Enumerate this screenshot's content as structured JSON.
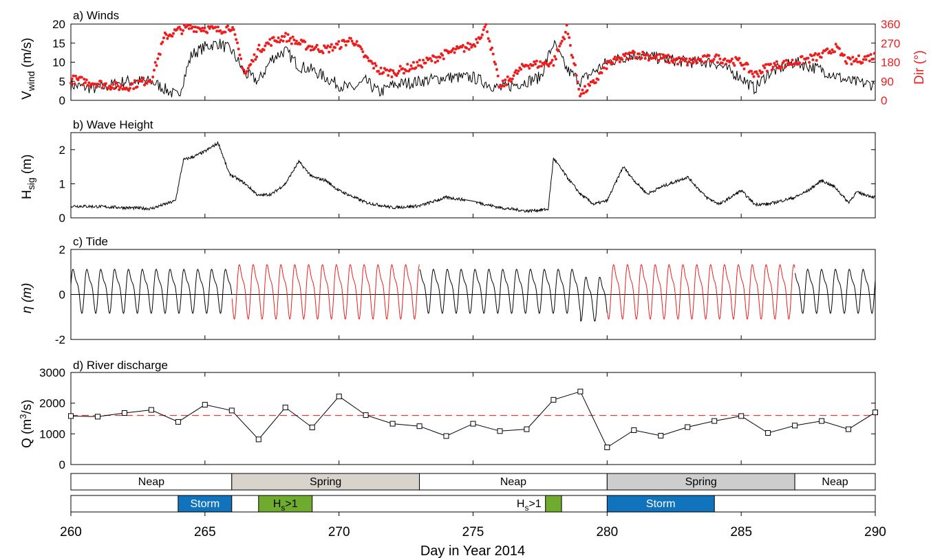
{
  "colors": {
    "axis": "#000000",
    "red": "#ee1c1c",
    "red_dash": "#e8393a",
    "spring1": "#d8d3cb",
    "spring2": "#cdcdcd",
    "storm": "#1273bd",
    "hs": "#6fab2e"
  },
  "panels": {
    "a": {
      "title": "a) Winds",
      "ylabel_main": "V",
      "ylabel_sub": "wind",
      "ylabel_unit": " (m/s)",
      "y2label": "Dir (°)",
      "yticks": [
        "0",
        "5",
        "10",
        "15",
        "20"
      ],
      "y2ticks": [
        "0",
        "90",
        "180",
        "270",
        "360"
      ]
    },
    "b": {
      "title": "b) Wave Height",
      "ylabel_main": "H",
      "ylabel_sub": "sig",
      "ylabel_unit": " (m)",
      "yticks": [
        "0",
        "1",
        "2"
      ]
    },
    "c": {
      "title": "c) Tide",
      "ylabel": "η (m)",
      "yticks": [
        "-2",
        "0",
        "2"
      ]
    },
    "d": {
      "title": "d) River discharge",
      "ylabel_main": "Q (m",
      "ylabel_sup": "3",
      "ylabel_unit": "/s)",
      "yticks": [
        "0",
        "1000",
        "2000",
        "3000"
      ]
    }
  },
  "xaxis": {
    "label": "Day in Year 2014",
    "ticks": [
      "260",
      "265",
      "270",
      "275",
      "280",
      "285",
      "290"
    ]
  },
  "chart_data": [
    {
      "type": "line",
      "title": "a) Winds",
      "ylabel": "V_wind (m/s)",
      "ylim": [
        0,
        20
      ],
      "y2label": "Dir (°)",
      "y2lim": [
        0,
        360
      ],
      "x_range": [
        260,
        290
      ],
      "series": [
        {
          "name": "V_wind",
          "x": [
            260,
            261,
            262,
            263,
            264,
            264.5,
            265,
            265.5,
            266,
            266.5,
            267,
            267.5,
            268,
            268.5,
            269,
            269.5,
            270,
            270.5,
            271,
            271.5,
            272,
            273,
            274,
            275,
            276,
            277,
            277.5,
            278,
            278.5,
            279,
            280,
            281,
            282,
            283,
            284,
            285,
            285.5,
            286,
            287,
            288,
            289,
            290
          ],
          "values": [
            4,
            3,
            5,
            5,
            1,
            12,
            14,
            15,
            13,
            7,
            5,
            11,
            13,
            9,
            8,
            6,
            4,
            3,
            5,
            2,
            4,
            5,
            6,
            6,
            3,
            5,
            6,
            15,
            8,
            5,
            10,
            12,
            11,
            10,
            10,
            6,
            3,
            7,
            10,
            8,
            5,
            4
          ]
        },
        {
          "name": "Dir",
          "x": [
            260,
            261,
            262,
            263,
            263.5,
            264,
            264.5,
            265,
            265.5,
            266,
            266.5,
            267,
            267.5,
            268,
            268.5,
            269,
            269.5,
            270,
            270.5,
            271,
            271.5,
            272,
            273,
            274,
            275,
            275.5,
            276,
            277,
            277.5,
            278,
            278.5,
            279,
            279.5,
            280,
            281,
            282,
            283,
            284,
            285,
            285.5,
            286,
            287,
            288,
            288.5,
            289,
            290
          ],
          "values": [
            100,
            80,
            60,
            100,
            300,
            330,
            345,
            340,
            330,
            350,
            120,
            240,
            280,
            300,
            270,
            250,
            240,
            260,
            290,
            200,
            140,
            130,
            170,
            220,
            260,
            350,
            60,
            170,
            170,
            180,
            340,
            30,
            80,
            170,
            220,
            200,
            180,
            200,
            180,
            120,
            160,
            180,
            210,
            250,
            180,
            210
          ]
        }
      ]
    },
    {
      "type": "line",
      "title": "b) Wave Height",
      "ylabel": "H_sig (m)",
      "ylim": [
        0,
        2.5
      ],
      "x_range": [
        260,
        290
      ],
      "series": [
        {
          "name": "H_sig",
          "x": [
            260,
            261,
            262,
            263,
            263.9,
            264.2,
            264.6,
            265,
            265.5,
            265.9,
            266.5,
            267,
            267.5,
            268,
            268.5,
            269,
            269.5,
            270,
            271,
            272,
            273,
            274,
            274.5,
            275,
            276,
            277,
            277.8,
            278,
            278.5,
            279,
            279.5,
            280,
            280.6,
            281,
            281.5,
            282,
            283,
            283.7,
            284.2,
            285,
            285.5,
            286,
            287,
            287.5,
            288,
            288.5,
            289,
            289.3,
            290
          ],
          "values": [
            0.35,
            0.33,
            0.3,
            0.27,
            0.5,
            1.7,
            1.8,
            1.95,
            2.2,
            1.3,
            1.0,
            0.65,
            0.7,
            1.0,
            1.65,
            1.2,
            1.1,
            0.8,
            0.45,
            0.3,
            0.35,
            0.6,
            0.55,
            0.48,
            0.3,
            0.2,
            0.25,
            1.75,
            1.2,
            0.7,
            0.4,
            0.5,
            1.5,
            1.1,
            0.7,
            0.9,
            1.2,
            0.6,
            0.4,
            0.8,
            0.4,
            0.4,
            0.6,
            0.8,
            1.1,
            0.9,
            0.45,
            0.75,
            0.6
          ]
        }
      ]
    },
    {
      "type": "line",
      "title": "c) Tide",
      "ylabel": "η (m)",
      "ylim": [
        -2,
        2
      ],
      "x_range": [
        260,
        290
      ],
      "series": [
        {
          "name": "η",
          "period_days": 0.517,
          "amplitude_m": [
            0.9,
            1.5
          ],
          "spring_periods": [
            [
              266,
              273
            ],
            [
              280,
              287
            ]
          ]
        }
      ]
    },
    {
      "type": "line",
      "title": "d) River discharge",
      "ylabel": "Q (m^3/s)",
      "ylim": [
        0,
        3000
      ],
      "x_range": [
        260,
        290
      ],
      "reference_line": 1600,
      "series": [
        {
          "name": "Q",
          "x": [
            260,
            261,
            262,
            263,
            264,
            265,
            266,
            267,
            268,
            269,
            270,
            271,
            272,
            273,
            274,
            275,
            276,
            277,
            278,
            279,
            280,
            281,
            282,
            283,
            284,
            285,
            286,
            287,
            288,
            289,
            290
          ],
          "values": [
            1580,
            1560,
            1680,
            1780,
            1390,
            1950,
            1760,
            820,
            1860,
            1210,
            2220,
            1610,
            1330,
            1250,
            930,
            1330,
            1090,
            1150,
            2110,
            2380,
            560,
            1120,
            940,
            1220,
            1420,
            1580,
            1030,
            1270,
            1420,
            1150,
            1700
          ]
        }
      ]
    }
  ],
  "timeline": {
    "tide_bands": [
      {
        "label": "Neap",
        "start": 260,
        "end": 266,
        "fill": "#ffffff"
      },
      {
        "label": "Spring",
        "start": 266,
        "end": 273,
        "fill": "#d8d3cb"
      },
      {
        "label": "Neap",
        "start": 273,
        "end": 280,
        "fill": "#ffffff"
      },
      {
        "label": "Spring",
        "start": 280,
        "end": 287,
        "fill": "#cdcdcd"
      },
      {
        "label": "Neap",
        "start": 287,
        "end": 290,
        "fill": "#ffffff"
      }
    ],
    "events": [
      {
        "label": "Storm",
        "start": 264,
        "end": 266,
        "fill": "#1273bd"
      },
      {
        "label": "H",
        "label_sub": "s",
        "label_tail": ">1",
        "start": 267,
        "end": 269,
        "fill": "#6fab2e"
      },
      {
        "label": "H",
        "label_sub": "s",
        "label_tail": ">1",
        "start": 277.7,
        "end": 278.3,
        "fill": "#6fab2e",
        "label_outside": true
      },
      {
        "label": "Storm",
        "start": 280,
        "end": 284,
        "fill": "#1273bd"
      }
    ]
  }
}
